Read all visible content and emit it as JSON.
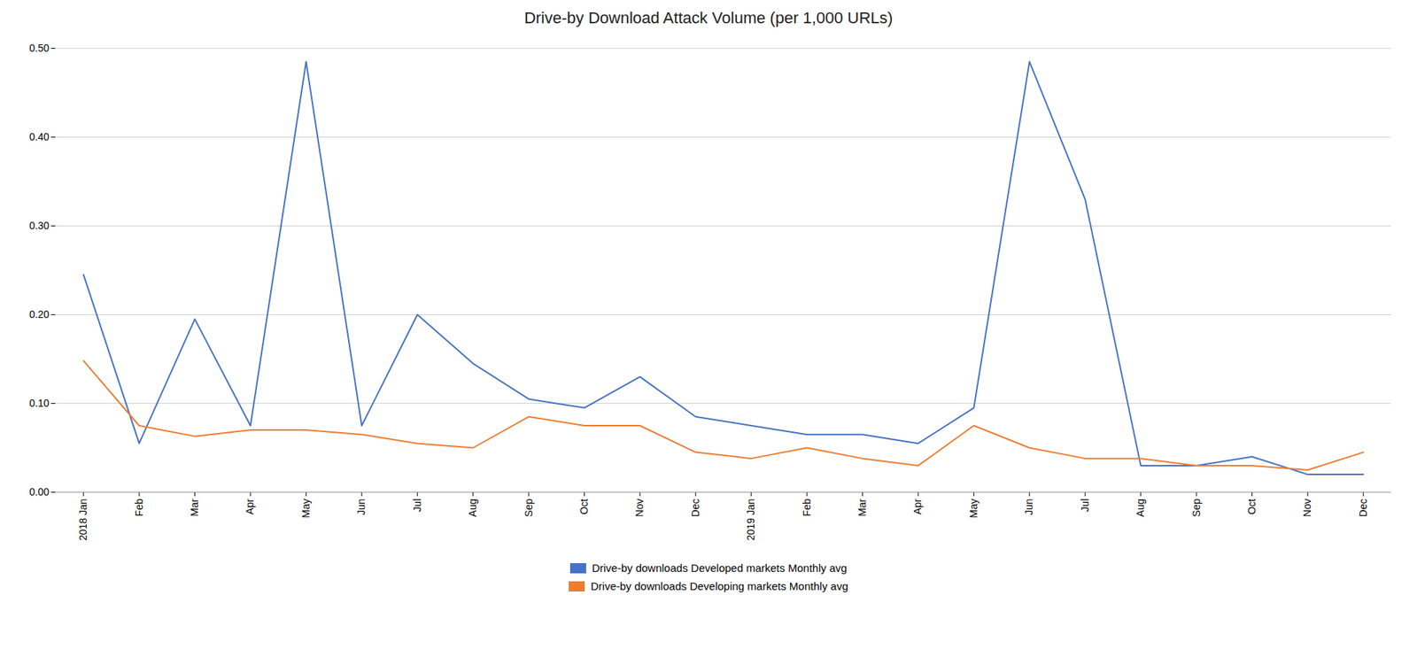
{
  "chart_data": {
    "type": "line",
    "title": "Drive-by Download Attack Volume (per 1,000 URLs)",
    "categories": [
      "2018 Jan",
      "Feb",
      "Mar",
      "Apr",
      "May",
      "Jun",
      "Jul",
      "Aug",
      "Sep",
      "Oct",
      "Nov",
      "Dec",
      "2019 Jan",
      "Feb",
      "Mar",
      "Apr",
      "May",
      "Jun",
      "Jul",
      "Aug",
      "Sep",
      "Oct",
      "Nov",
      "Dec"
    ],
    "series": [
      {
        "name": "Drive-by downloads Developed markets Monthly avg",
        "color": "#4472C4",
        "values": [
          0.245,
          0.055,
          0.195,
          0.075,
          0.485,
          0.075,
          0.2,
          0.145,
          0.105,
          0.095,
          0.13,
          0.085,
          0.075,
          0.065,
          0.065,
          0.055,
          0.095,
          0.485,
          0.33,
          0.03,
          0.03,
          0.04,
          0.02,
          0.02
        ]
      },
      {
        "name": "Drive-by downloads Developing markets Monthly avg",
        "color": "#ED7D31",
        "values": [
          0.148,
          0.075,
          0.063,
          0.07,
          0.07,
          0.065,
          0.055,
          0.05,
          0.085,
          0.075,
          0.075,
          0.045,
          0.038,
          0.05,
          0.038,
          0.03,
          0.075,
          0.05,
          0.038,
          0.038,
          0.03,
          0.03,
          0.025,
          0.045
        ]
      }
    ],
    "ylim": [
      0.0,
      0.5
    ],
    "yticks": [
      {
        "value": 0.0,
        "label": "0.00"
      },
      {
        "value": 0.1,
        "label": "0.10"
      },
      {
        "value": 0.2,
        "label": "0.20"
      },
      {
        "value": 0.3,
        "label": "0.30"
      },
      {
        "value": 0.4,
        "label": "0.40"
      },
      {
        "value": 0.5,
        "label": "0.50"
      }
    ],
    "grid": true,
    "legend": "bottom"
  }
}
